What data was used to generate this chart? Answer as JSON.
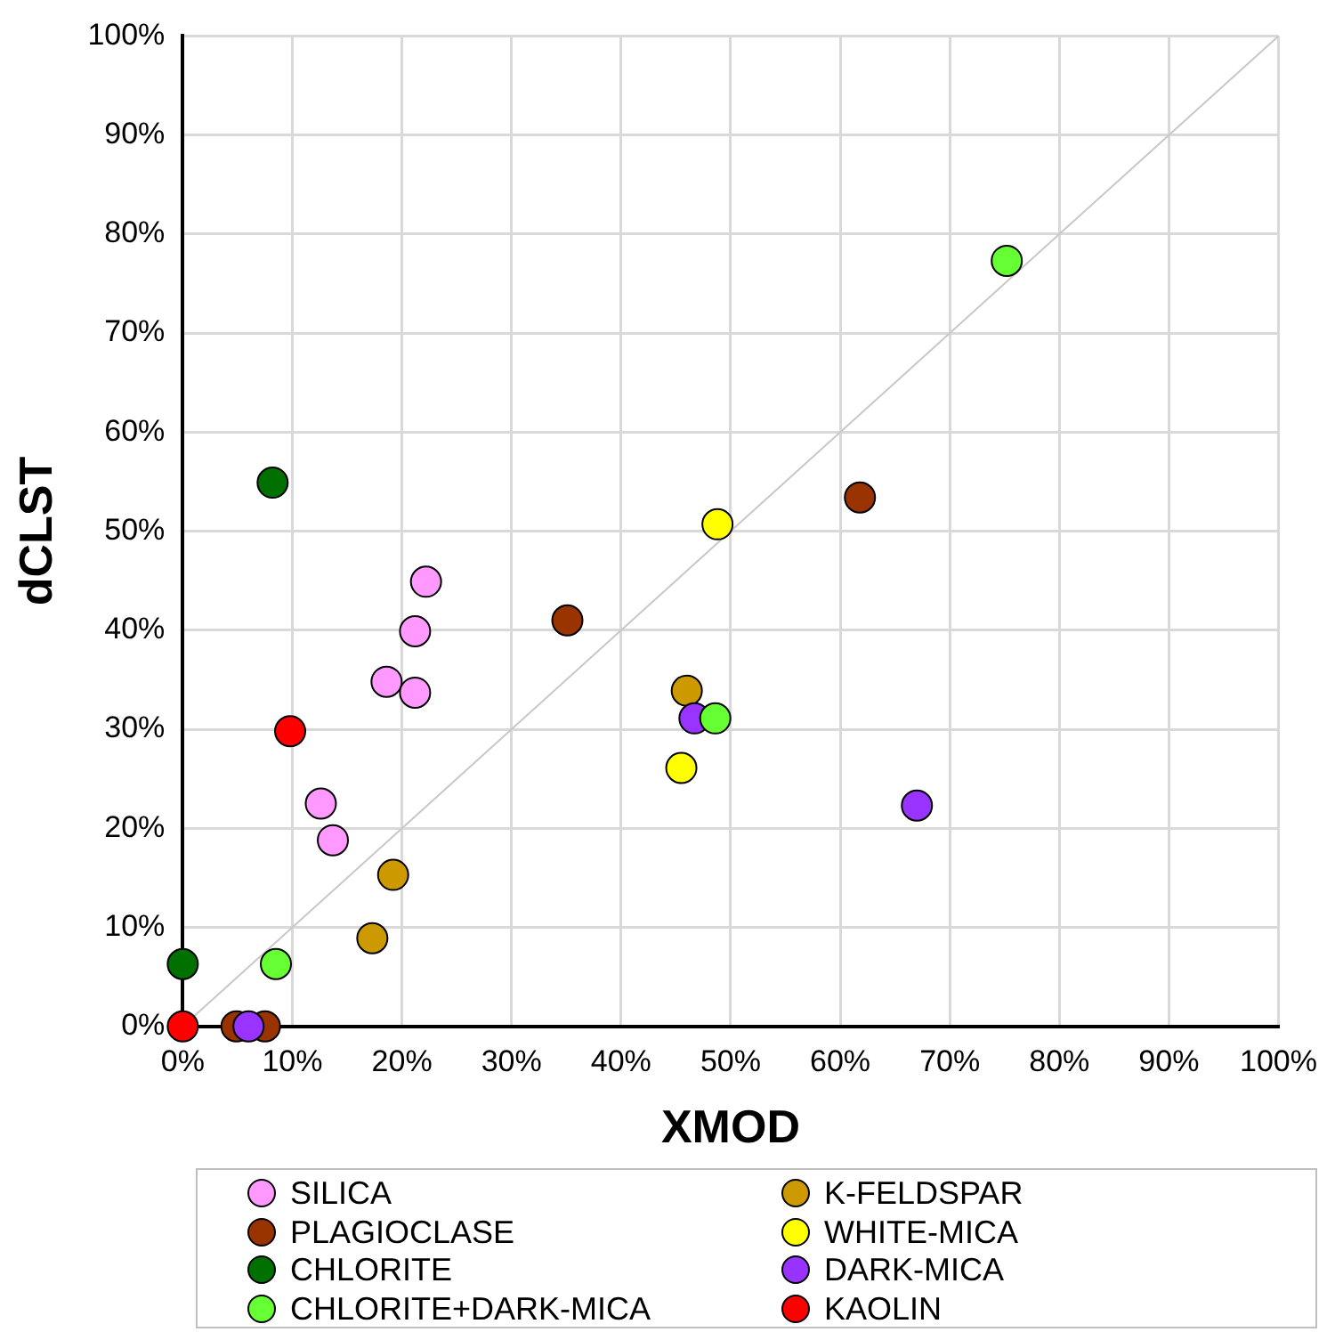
{
  "chart_data": {
    "type": "scatter",
    "xlabel": "XMOD",
    "ylabel": "dCLST",
    "xlim": [
      0,
      100
    ],
    "ylim": [
      0,
      100
    ],
    "xticks": [
      {
        "value": 0,
        "label": "0%"
      },
      {
        "value": 10,
        "label": "10%"
      },
      {
        "value": 20,
        "label": "20%"
      },
      {
        "value": 30,
        "label": "30%"
      },
      {
        "value": 40,
        "label": "40%"
      },
      {
        "value": 50,
        "label": "50%"
      },
      {
        "value": 60,
        "label": "60%"
      },
      {
        "value": 70,
        "label": "70%"
      },
      {
        "value": 80,
        "label": "80%"
      },
      {
        "value": 90,
        "label": "90%"
      },
      {
        "value": 100,
        "label": "100%"
      }
    ],
    "yticks": [
      {
        "value": 0,
        "label": "0%"
      },
      {
        "value": 10,
        "label": "10%"
      },
      {
        "value": 20,
        "label": "20%"
      },
      {
        "value": 30,
        "label": "30%"
      },
      {
        "value": 40,
        "label": "40%"
      },
      {
        "value": 50,
        "label": "50%"
      },
      {
        "value": 60,
        "label": "60%"
      },
      {
        "value": 70,
        "label": "70%"
      },
      {
        "value": 80,
        "label": "80%"
      },
      {
        "value": 90,
        "label": "90%"
      },
      {
        "value": 100,
        "label": "100%"
      }
    ],
    "grid": true,
    "legend": "bottom",
    "marker": "circle",
    "series": [
      {
        "type": "line",
        "color": "#c8c8c8",
        "marker": "none",
        "x": [
          0,
          100
        ],
        "values": [
          0,
          100
        ]
      },
      {
        "name": "SILICA",
        "color": "#ff99ff",
        "x": [
          22.2,
          21.2,
          18.6,
          21.2,
          12.6,
          13.7
        ],
        "values": [
          44.9,
          39.9,
          34.8,
          33.7,
          22.5,
          18.8
        ]
      },
      {
        "name": "K-FELDSPAR",
        "color": "#cc9900",
        "x": [
          46.0,
          19.2,
          17.3
        ],
        "values": [
          33.9,
          15.3,
          8.9
        ]
      },
      {
        "name": "PLAGIOCLASE",
        "color": "#993300",
        "x": [
          35.1,
          61.8,
          4.9,
          7.5
        ],
        "values": [
          41.0,
          53.4,
          0,
          0
        ]
      },
      {
        "name": "WHITE-MICA",
        "color": "#ffff00",
        "x": [
          48.8,
          45.5
        ],
        "values": [
          50.7,
          26.1
        ]
      },
      {
        "name": "CHLORITE",
        "color": "#007000",
        "x": [
          8.2,
          0
        ],
        "values": [
          54.9,
          6.3
        ]
      },
      {
        "name": "DARK-MICA",
        "color": "#9933ff",
        "x": [
          46.7,
          67.0,
          6.0
        ],
        "values": [
          31.1,
          22.3,
          0
        ]
      },
      {
        "name": "CHLORITE+DARK-MICA",
        "color": "#66ff33",
        "x": [
          75.2,
          48.6,
          8.5
        ],
        "values": [
          77.3,
          31.1,
          6.3
        ]
      },
      {
        "name": "KAOLIN",
        "color": "#ff0000",
        "x": [
          9.8,
          0
        ],
        "values": [
          29.8,
          0
        ]
      }
    ]
  }
}
